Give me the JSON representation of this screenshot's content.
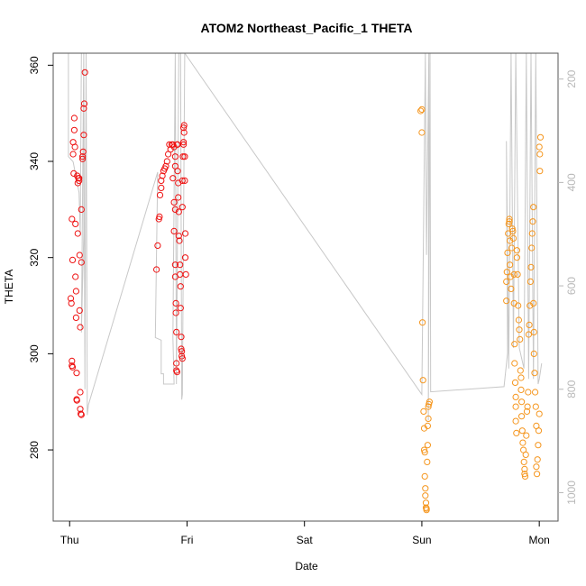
{
  "chart_data": {
    "type": "scatter",
    "title": "ATOM2 Northeast_Pacific_1 THETA",
    "xlabel": "Date",
    "ylabel": "THETA",
    "x_ticks": [
      {
        "value": 0,
        "label": "Thu"
      },
      {
        "value": 1,
        "label": "Fri"
      },
      {
        "value": 2,
        "label": "Sat"
      },
      {
        "value": 3,
        "label": "Sun"
      },
      {
        "value": 4,
        "label": "Mon"
      }
    ],
    "xlim": [
      -0.14,
      4.16
    ],
    "ylim": [
      265.2,
      362.5
    ],
    "y_ticks": [
      280,
      300,
      320,
      340,
      360
    ],
    "y2_ticks": [
      200,
      400,
      600,
      800,
      1000
    ],
    "y2lim": [
      1055,
      150
    ],
    "grid": false,
    "colors": {
      "series_red": "#ee1111",
      "series_orange": "#f5961e",
      "pressure_line": "#c8c8c8",
      "right_axis": "#b8b8b8"
    },
    "series": [
      {
        "color": "red",
        "points": [
          [
            0.01,
            311.5
          ],
          [
            0.015,
            310.5
          ],
          [
            0.02,
            298.5
          ],
          [
            0.02,
            297.5
          ],
          [
            0.025,
            297.2
          ],
          [
            0.02,
            328
          ],
          [
            0.025,
            319.5
          ],
          [
            0.03,
            344
          ],
          [
            0.03,
            341.5
          ],
          [
            0.035,
            337.5
          ],
          [
            0.04,
            349
          ],
          [
            0.04,
            346.5
          ],
          [
            0.045,
            343
          ],
          [
            0.05,
            327
          ],
          [
            0.05,
            316
          ],
          [
            0.055,
            313
          ],
          [
            0.055,
            307.5
          ],
          [
            0.06,
            296
          ],
          [
            0.06,
            290.5
          ],
          [
            0.062,
            290.3
          ],
          [
            0.065,
            337
          ],
          [
            0.07,
            335.5
          ],
          [
            0.07,
            325
          ],
          [
            0.075,
            336.5
          ],
          [
            0.08,
            336.5
          ],
          [
            0.08,
            336
          ],
          [
            0.085,
            320.5
          ],
          [
            0.085,
            309
          ],
          [
            0.09,
            305.5
          ],
          [
            0.09,
            292
          ],
          [
            0.09,
            288.5
          ],
          [
            0.095,
            287.5
          ],
          [
            0.1,
            287.3
          ],
          [
            0.1,
            330
          ],
          [
            0.1,
            319
          ],
          [
            0.11,
            341
          ],
          [
            0.11,
            340.5
          ],
          [
            0.115,
            342
          ],
          [
            0.12,
            345.5
          ],
          [
            0.12,
            351
          ],
          [
            0.125,
            352
          ],
          [
            0.13,
            358.5
          ],
          [
            0.74,
            317.5
          ],
          [
            0.75,
            322.5
          ],
          [
            0.76,
            328
          ],
          [
            0.765,
            328.5
          ],
          [
            0.77,
            333
          ],
          [
            0.78,
            334.5
          ],
          [
            0.78,
            336
          ],
          [
            0.79,
            337
          ],
          [
            0.8,
            338
          ],
          [
            0.81,
            338.5
          ],
          [
            0.82,
            339
          ],
          [
            0.83,
            340
          ],
          [
            0.84,
            341.5
          ],
          [
            0.85,
            343.5
          ],
          [
            0.86,
            342.5
          ],
          [
            0.87,
            343.5
          ],
          [
            0.88,
            343.5
          ],
          [
            0.88,
            336.5
          ],
          [
            0.89,
            343
          ],
          [
            0.89,
            331.5
          ],
          [
            0.89,
            325.5
          ],
          [
            0.9,
            341
          ],
          [
            0.9,
            339
          ],
          [
            0.9,
            330
          ],
          [
            0.9,
            318.5
          ],
          [
            0.9,
            316
          ],
          [
            0.905,
            310.5
          ],
          [
            0.905,
            308.5
          ],
          [
            0.91,
            304.5
          ],
          [
            0.91,
            298
          ],
          [
            0.91,
            296.5
          ],
          [
            0.915,
            296.2
          ],
          [
            0.915,
            343.5
          ],
          [
            0.92,
            343.5
          ],
          [
            0.92,
            338
          ],
          [
            0.925,
            335.5
          ],
          [
            0.925,
            332.5
          ],
          [
            0.93,
            329.5
          ],
          [
            0.93,
            324.5
          ],
          [
            0.935,
            323.5
          ],
          [
            0.94,
            318.5
          ],
          [
            0.94,
            316.5
          ],
          [
            0.945,
            314
          ],
          [
            0.945,
            309.5
          ],
          [
            0.95,
            303.5
          ],
          [
            0.95,
            301
          ],
          [
            0.955,
            300.5
          ],
          [
            0.955,
            299.5
          ],
          [
            0.96,
            299
          ],
          [
            0.96,
            330.5
          ],
          [
            0.96,
            336
          ],
          [
            0.965,
            341
          ],
          [
            0.97,
            343.5
          ],
          [
            0.97,
            344
          ],
          [
            0.97,
            347
          ],
          [
            0.975,
            347.5
          ],
          [
            0.975,
            346
          ],
          [
            0.98,
            341
          ],
          [
            0.98,
            336
          ],
          [
            0.985,
            325
          ],
          [
            0.985,
            320
          ],
          [
            0.99,
            316.5
          ]
        ]
      },
      {
        "color": "orange",
        "points": [
          [
            2.99,
            350.5
          ],
          [
            3.0,
            350.8
          ],
          [
            3.0,
            346
          ],
          [
            3.005,
            306.5
          ],
          [
            3.01,
            294.5
          ],
          [
            3.015,
            288
          ],
          [
            3.02,
            284.5
          ],
          [
            3.02,
            280
          ],
          [
            3.025,
            279.5
          ],
          [
            3.025,
            274.5
          ],
          [
            3.03,
            272
          ],
          [
            3.03,
            270.5
          ],
          [
            3.035,
            269
          ],
          [
            3.035,
            268
          ],
          [
            3.04,
            267.5
          ],
          [
            3.04,
            267.8
          ],
          [
            3.045,
            277.5
          ],
          [
            3.05,
            281
          ],
          [
            3.05,
            285
          ],
          [
            3.055,
            286.5
          ],
          [
            3.055,
            289
          ],
          [
            3.06,
            289.5
          ],
          [
            3.065,
            290
          ],
          [
            3.72,
            315
          ],
          [
            3.72,
            311
          ],
          [
            3.725,
            317
          ],
          [
            3.73,
            321
          ],
          [
            3.735,
            325
          ],
          [
            3.74,
            327
          ],
          [
            3.745,
            327.5
          ],
          [
            3.745,
            328
          ],
          [
            3.75,
            323.5
          ],
          [
            3.75,
            318.5
          ],
          [
            3.755,
            316
          ],
          [
            3.76,
            313.5
          ],
          [
            3.765,
            322
          ],
          [
            3.77,
            326
          ],
          [
            3.775,
            325.5
          ],
          [
            3.78,
            324
          ],
          [
            3.785,
            316.5
          ],
          [
            3.785,
            310.5
          ],
          [
            3.79,
            302
          ],
          [
            3.79,
            298
          ],
          [
            3.795,
            294
          ],
          [
            3.8,
            291
          ],
          [
            3.8,
            289
          ],
          [
            3.8,
            286
          ],
          [
            3.805,
            283.5
          ],
          [
            3.81,
            321.5
          ],
          [
            3.81,
            320
          ],
          [
            3.815,
            316.5
          ],
          [
            3.82,
            310
          ],
          [
            3.825,
            307
          ],
          [
            3.83,
            305
          ],
          [
            3.835,
            303
          ],
          [
            3.84,
            296.5
          ],
          [
            3.845,
            295
          ],
          [
            3.845,
            292.5
          ],
          [
            3.85,
            290
          ],
          [
            3.85,
            287
          ],
          [
            3.855,
            284
          ],
          [
            3.86,
            281.5
          ],
          [
            3.865,
            280
          ],
          [
            3.87,
            277.5
          ],
          [
            3.875,
            276
          ],
          [
            3.875,
            275
          ],
          [
            3.88,
            274.5
          ],
          [
            3.885,
            279
          ],
          [
            3.89,
            283
          ],
          [
            3.895,
            288
          ],
          [
            3.9,
            289
          ],
          [
            3.905,
            292
          ],
          [
            3.91,
            304
          ],
          [
            3.915,
            306
          ],
          [
            3.92,
            310
          ],
          [
            3.925,
            315
          ],
          [
            3.93,
            318
          ],
          [
            3.935,
            322
          ],
          [
            3.94,
            325
          ],
          [
            3.945,
            327.5
          ],
          [
            3.95,
            330.5
          ],
          [
            3.95,
            310.5
          ],
          [
            3.955,
            304.5
          ],
          [
            3.955,
            300
          ],
          [
            3.96,
            296
          ],
          [
            3.965,
            292
          ],
          [
            3.97,
            289
          ],
          [
            3.975,
            285
          ],
          [
            3.975,
            276.5
          ],
          [
            3.98,
            275
          ],
          [
            3.985,
            278
          ],
          [
            3.99,
            281
          ],
          [
            3.995,
            284
          ],
          [
            4.0,
            287.5
          ],
          [
            4.0,
            343
          ],
          [
            4.005,
            341.5
          ],
          [
            4.005,
            338
          ],
          [
            4.01,
            345
          ]
        ]
      }
    ],
    "pressure_line": [
      [
        -0.01,
        150
      ],
      [
        -0.01,
        350
      ],
      [
        0.03,
        360
      ],
      [
        0.08,
        420
      ],
      [
        0.09,
        500
      ],
      [
        0.1,
        150
      ],
      [
        0.12,
        150
      ],
      [
        0.12,
        500
      ],
      [
        0.1,
        690
      ],
      [
        0.12,
        150
      ],
      [
        0.13,
        800
      ],
      [
        0.14,
        150
      ],
      [
        0.15,
        850
      ],
      [
        0.16,
        830
      ],
      [
        0.75,
        380
      ],
      [
        0.73,
        700
      ],
      [
        0.78,
        705
      ],
      [
        0.78,
        770
      ],
      [
        0.8,
        770
      ],
      [
        0.8,
        790
      ],
      [
        0.89,
        790
      ],
      [
        0.88,
        700
      ],
      [
        0.9,
        150
      ],
      [
        0.91,
        790
      ],
      [
        0.93,
        150
      ],
      [
        0.945,
        150
      ],
      [
        0.955,
        820
      ],
      [
        0.96,
        810
      ],
      [
        0.98,
        150
      ],
      [
        3.0,
        810
      ],
      [
        3.03,
        150
      ],
      [
        3.04,
        540
      ],
      [
        3.06,
        150
      ],
      [
        3.055,
        860
      ],
      [
        3.07,
        150
      ],
      [
        3.075,
        805
      ],
      [
        3.7,
        795
      ],
      [
        3.73,
        730
      ],
      [
        3.72,
        320
      ],
      [
        3.74,
        760
      ],
      [
        3.76,
        150
      ],
      [
        3.78,
        720
      ],
      [
        3.8,
        150
      ],
      [
        3.83,
        720
      ],
      [
        3.87,
        760
      ],
      [
        3.89,
        150
      ],
      [
        3.91,
        780
      ],
      [
        3.93,
        150
      ],
      [
        3.95,
        780
      ],
      [
        3.97,
        150
      ],
      [
        3.99,
        790
      ],
      [
        4.0,
        780
      ],
      [
        4.02,
        750
      ]
    ]
  }
}
